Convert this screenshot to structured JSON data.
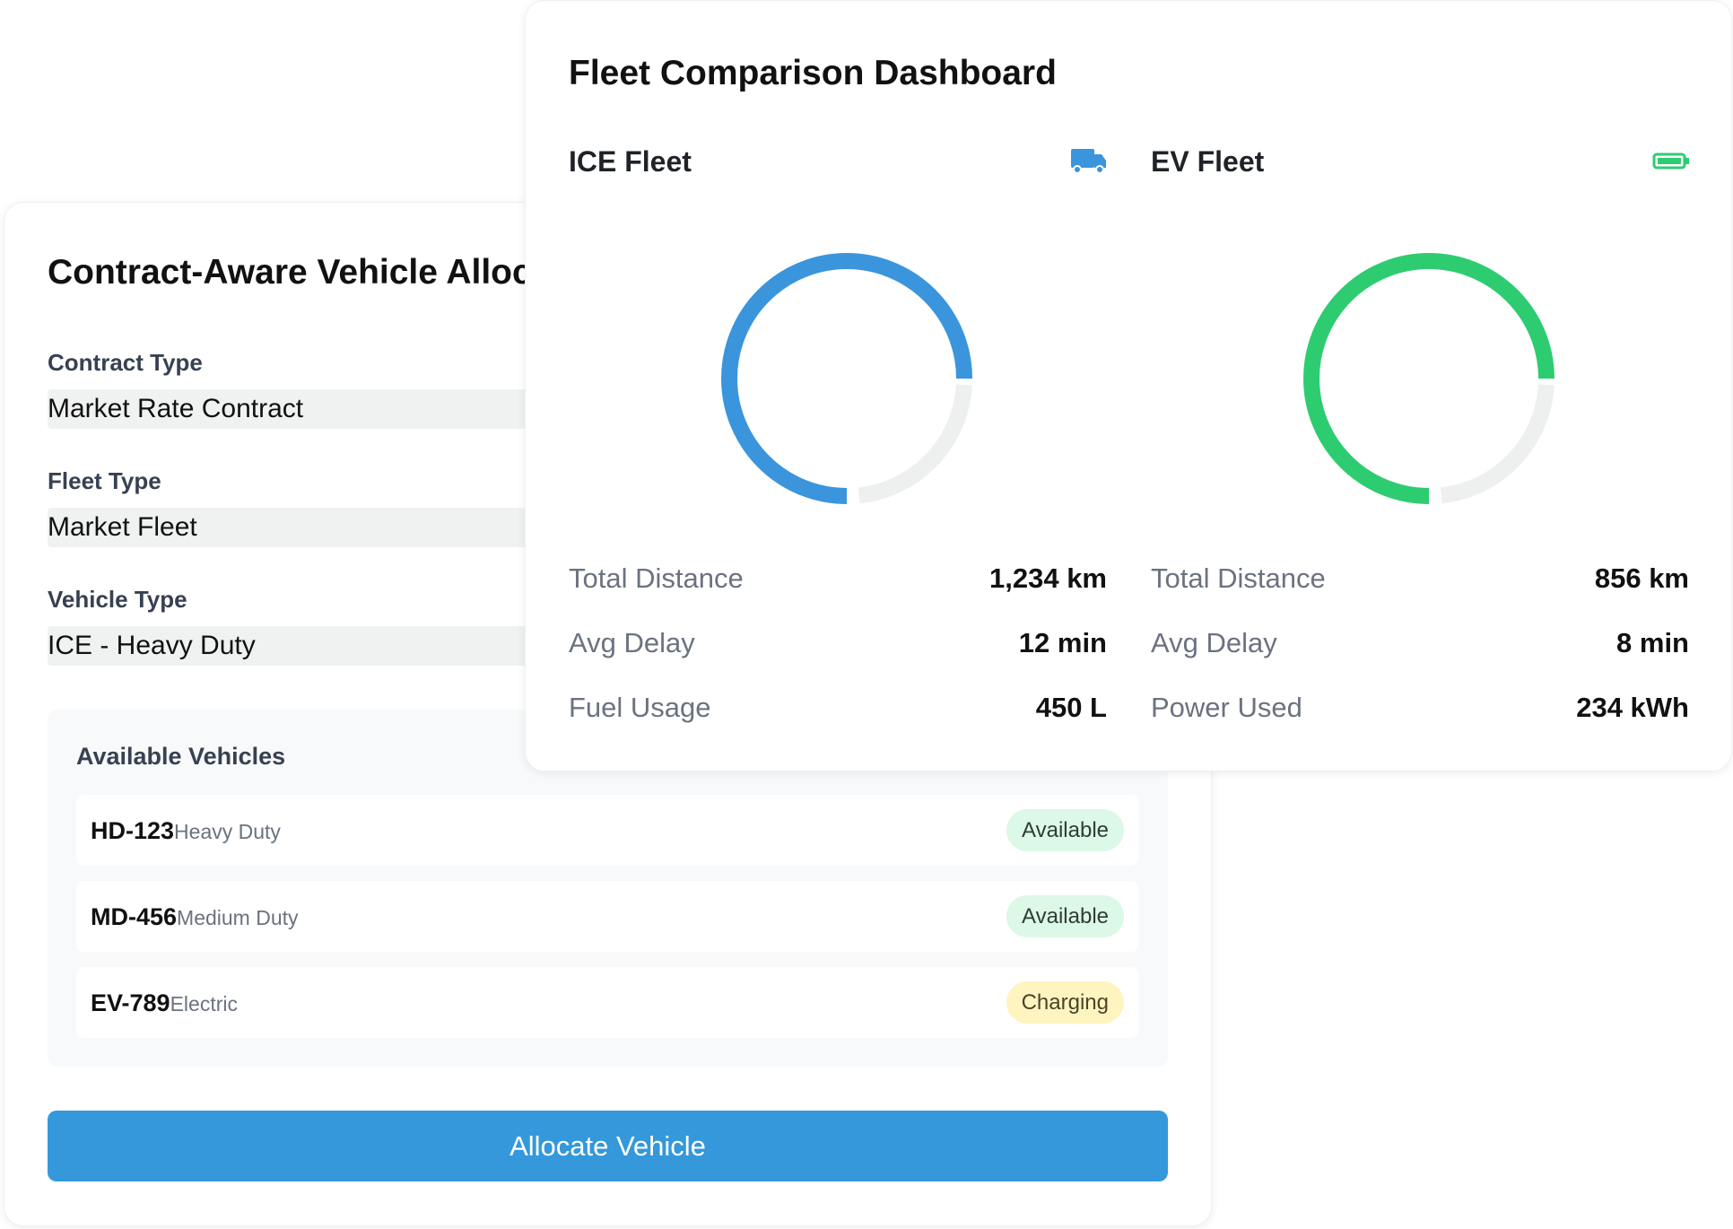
{
  "allocation": {
    "title": "Contract-Aware Vehicle Allocation",
    "fields": [
      {
        "label": "Contract Type",
        "value": "Market Rate Contract"
      },
      {
        "label": "Fleet Type",
        "value": "Market Fleet"
      },
      {
        "label": "Vehicle Type",
        "value": "ICE - Heavy Duty"
      }
    ],
    "vehicles": {
      "title": "Available Vehicles",
      "items": [
        {
          "id": "HD-123",
          "type": "Heavy Duty",
          "status": "Available"
        },
        {
          "id": "MD-456",
          "type": "Medium Duty",
          "status": "Available"
        },
        {
          "id": "EV-789",
          "type": "Electric",
          "status": "Charging"
        }
      ]
    },
    "button": "Allocate Vehicle"
  },
  "dashboard": {
    "title": "Fleet Comparison Dashboard",
    "fleets": [
      {
        "name": "ICE Fleet",
        "gauge_percent": 75,
        "color": "#3a95dc",
        "stats": [
          {
            "label": "Total Distance",
            "value": "1,234 km"
          },
          {
            "label": "Avg Delay",
            "value": "12 min"
          },
          {
            "label": "Fuel Usage",
            "value": "450 L"
          }
        ]
      },
      {
        "name": "EV Fleet",
        "gauge_percent": 75,
        "color": "#2ecc71",
        "stats": [
          {
            "label": "Total Distance",
            "value": "856 km"
          },
          {
            "label": "Avg Delay",
            "value": "8 min"
          },
          {
            "label": "Power Used",
            "value": "234 kWh"
          }
        ]
      }
    ]
  }
}
